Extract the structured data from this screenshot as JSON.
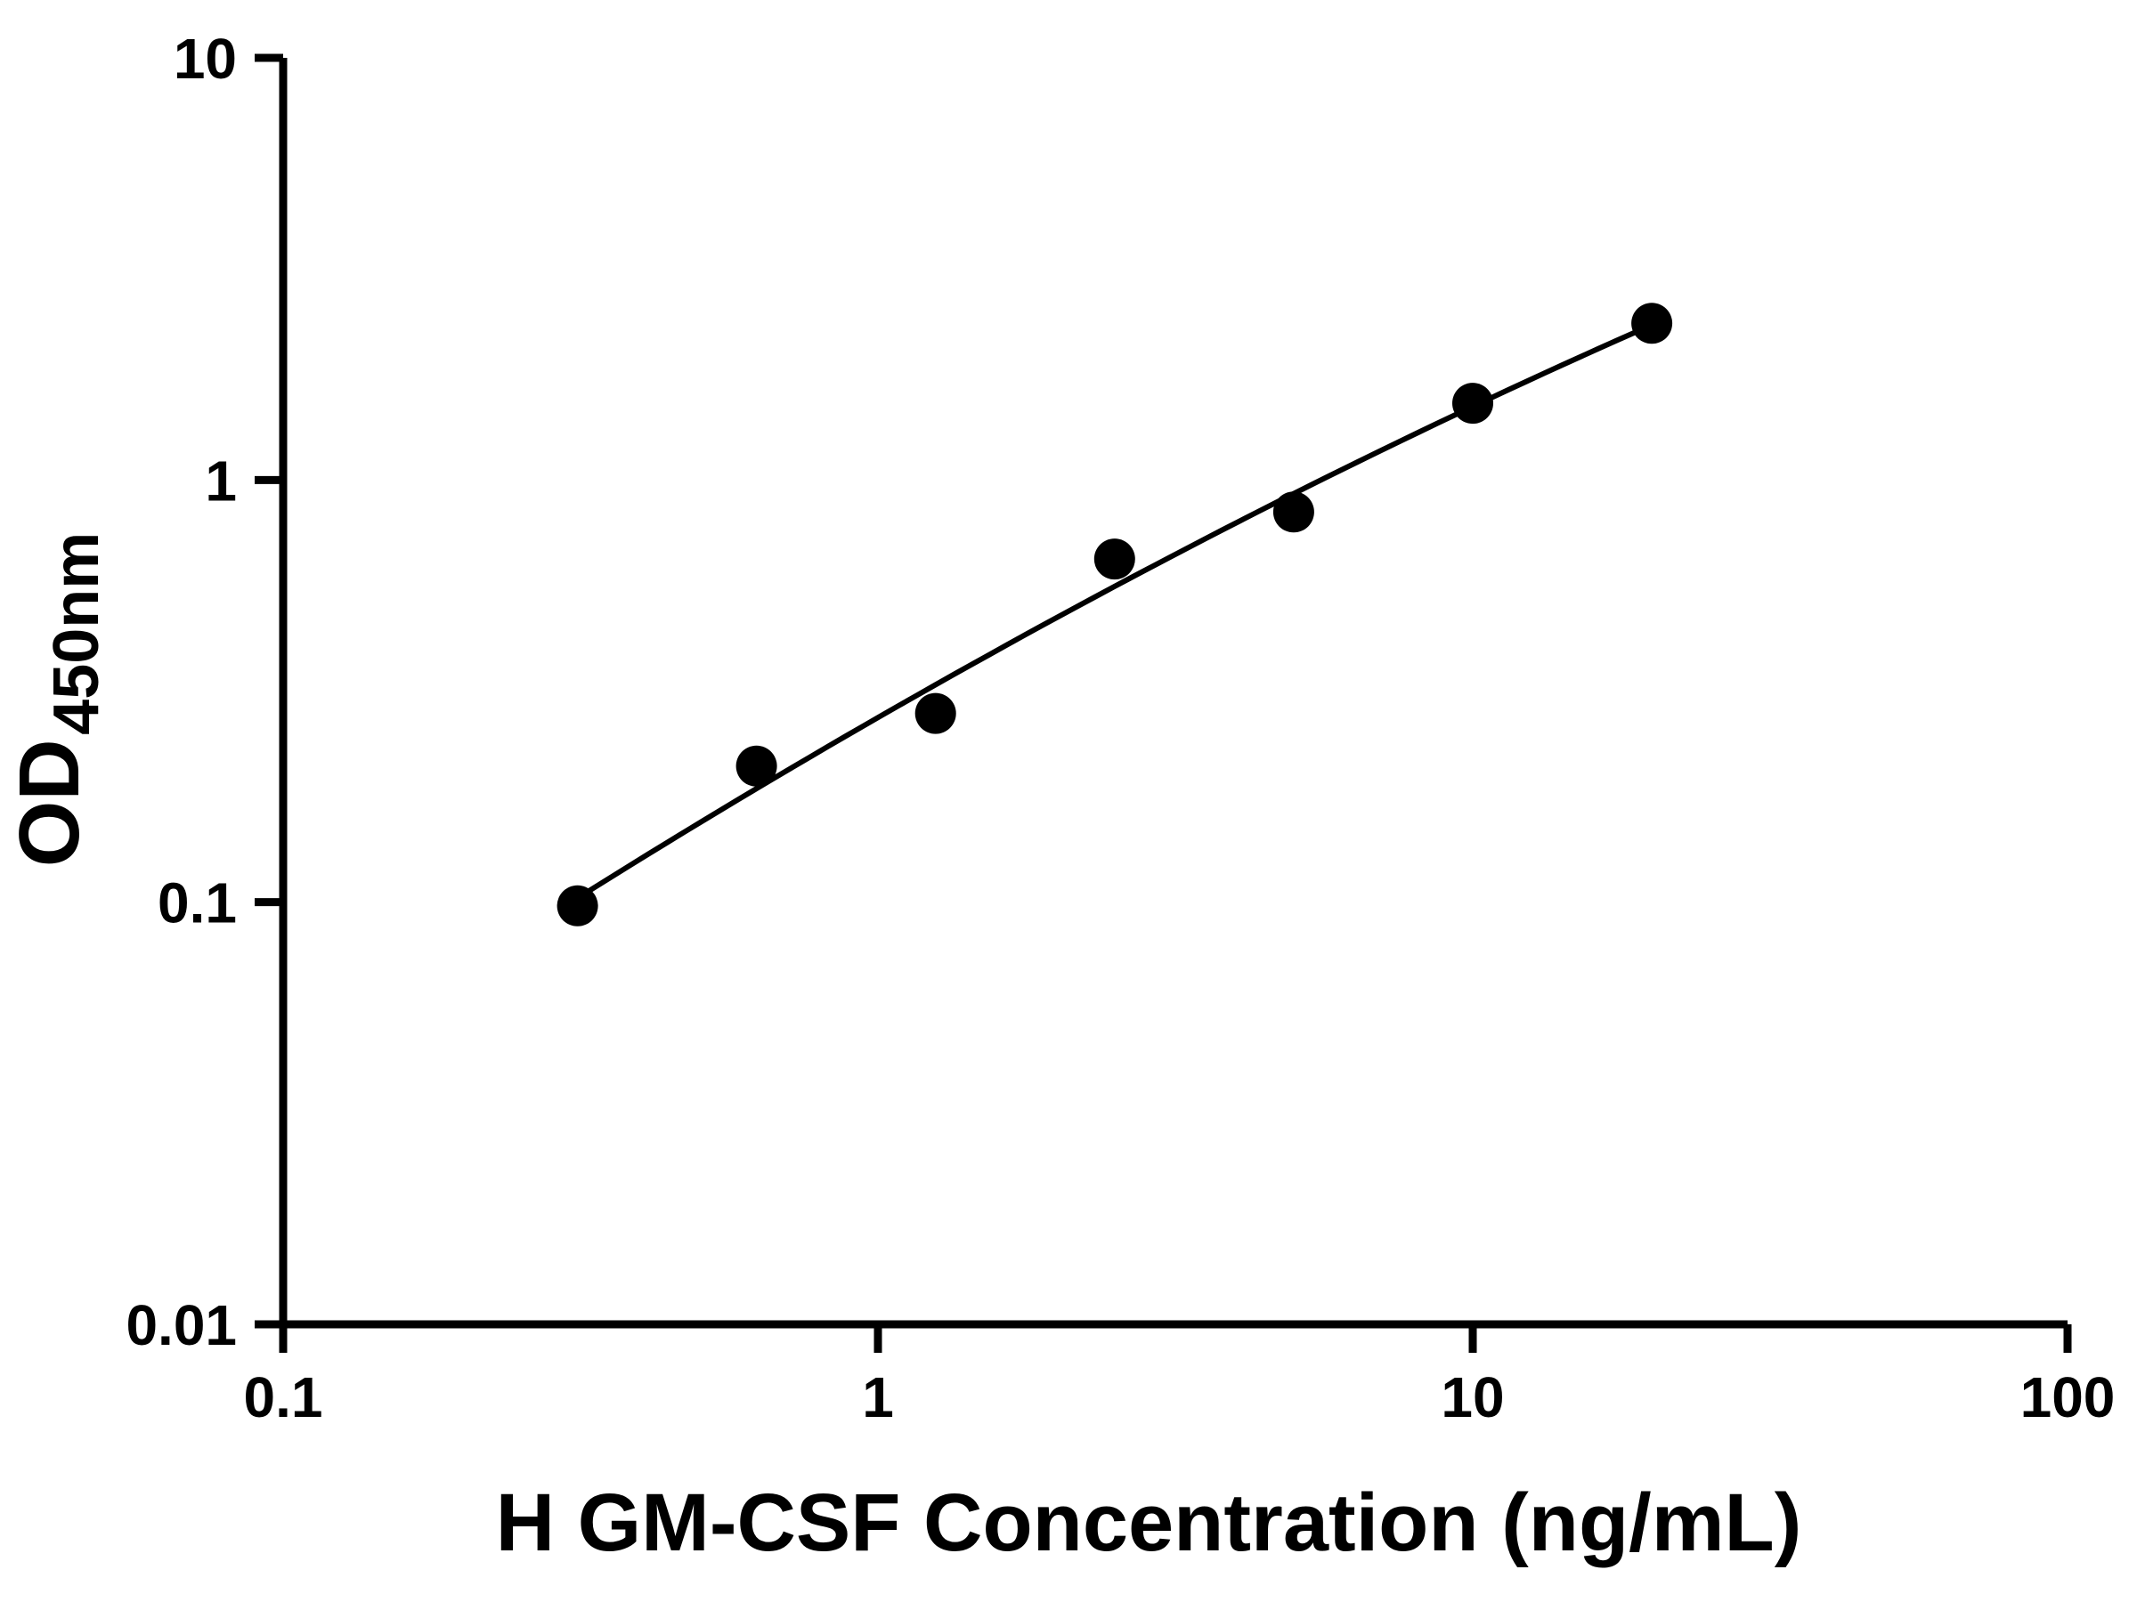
{
  "chart_data": {
    "type": "scatter",
    "title": "",
    "xlabel": "H GM-CSF Concentration (ng/mL)",
    "ylabel": "OD",
    "ylabel_subscript": "450nm",
    "x_scale": "log",
    "y_scale": "log",
    "xlim": [
      0.1,
      100
    ],
    "ylim": [
      0.01,
      10
    ],
    "x_ticks": [
      0.1,
      1,
      10,
      100
    ],
    "x_tick_labels": [
      "0.1",
      "1",
      "10",
      "100"
    ],
    "y_ticks": [
      0.01,
      0.1,
      1,
      10
    ],
    "y_tick_labels": [
      "0.01",
      "0.1",
      "1",
      "10"
    ],
    "grid": false,
    "legend_position": "none",
    "series": [
      {
        "name": "standard-curve-points",
        "marker": "filled-circle",
        "color": "#000000",
        "x": [
          0.3125,
          0.625,
          1.25,
          2.5,
          5,
          10,
          20
        ],
        "y": [
          0.098,
          0.21,
          0.28,
          0.65,
          0.84,
          1.52,
          2.35
        ]
      }
    ],
    "fit_line": {
      "type": "log-log-quadratic-least-squares",
      "x_range": [
        0.3125,
        20
      ],
      "color": "#000000"
    },
    "colors": {
      "axis": "#000000",
      "marker": "#000000",
      "background": "#ffffff"
    }
  }
}
